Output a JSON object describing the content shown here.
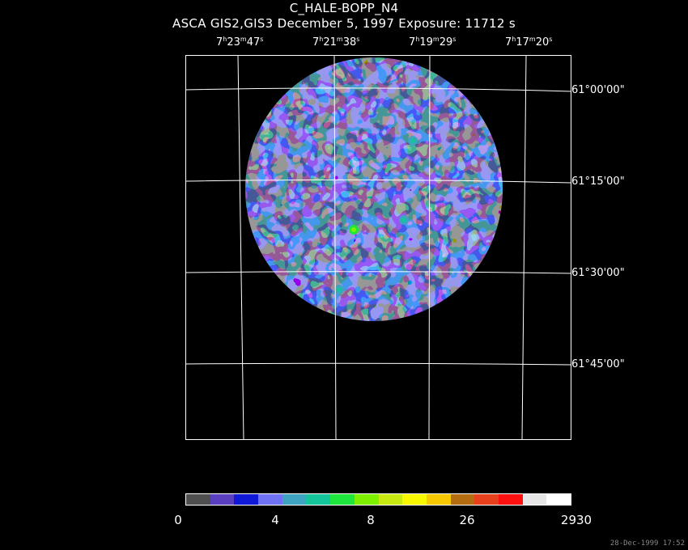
{
  "title": "C_HALE-BOPP_N4",
  "subtitle": "ASCA GIS2,GIS3 December 5, 1997 Exposure: 11712 s",
  "ra_labels": [
    {
      "h": "7",
      "m": "23",
      "s": "47"
    },
    {
      "h": "7",
      "m": "21",
      "s": "38"
    },
    {
      "h": "7",
      "m": "19",
      "s": "29"
    },
    {
      "h": "7",
      "m": "17",
      "s": "20"
    }
  ],
  "ra_units": {
    "h": "h",
    "m": "m",
    "s": "s"
  },
  "dec_labels": [
    "61°00'00\"",
    "61°15'00\"",
    "61°30'00\"",
    "61°45'00\""
  ],
  "colorbar": {
    "colors": [
      "#4f4f4f",
      "#5a3fc0",
      "#1019d6",
      "#6f72f2",
      "#3fa3c2",
      "#14c49a",
      "#1ee63c",
      "#7df000",
      "#c8e812",
      "#f7f700",
      "#f5c800",
      "#b36d10",
      "#e8401c",
      "#ff1010",
      "#e6e6e6",
      "#ffffff"
    ],
    "labels": [
      "0",
      "4",
      "8",
      "26",
      "2930"
    ]
  },
  "timestamp": "28-Dec-1999 17:52"
}
